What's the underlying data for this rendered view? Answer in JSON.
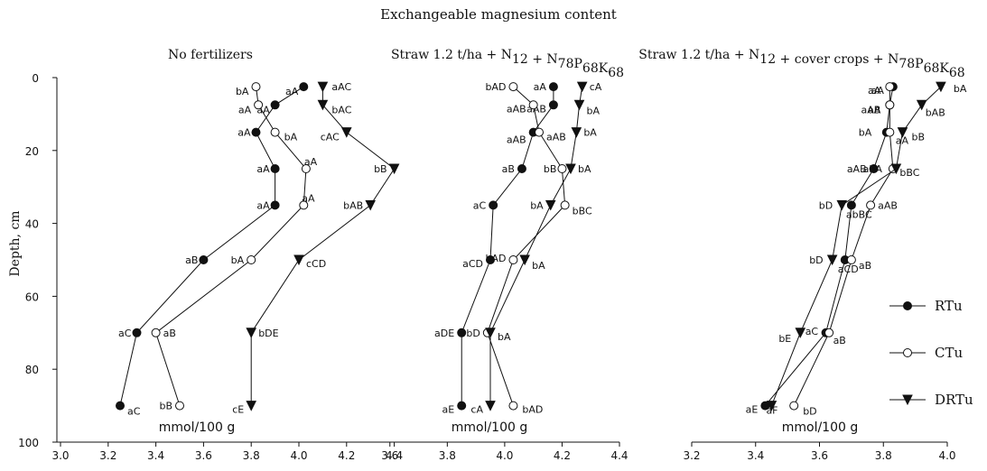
{
  "figure": {
    "title": "Exchangeable magnesium content",
    "ylabel": "Depth, cm",
    "yticks": [
      "0",
      "20",
      "40",
      "60",
      "80",
      "100"
    ],
    "legend": [
      {
        "name": "RTu",
        "marker": "circle-filled"
      },
      {
        "name": "CTu",
        "marker": "circle-open"
      },
      {
        "name": "DRTu",
        "marker": "triangle-down-filled"
      }
    ]
  },
  "chart_data": [
    {
      "type": "line",
      "title": "No fertilizers",
      "xlabel": "mmol/100 g",
      "ylabel": "Depth, cm",
      "xlim": [
        3.0,
        4.5
      ],
      "ylim": [
        0,
        100
      ],
      "xticks": [
        "3.0",
        "3.2",
        "3.4",
        "3.6",
        "3.8",
        "4.0",
        "4.2",
        "4.4"
      ],
      "xtick_values": [
        3.0,
        3.2,
        3.4,
        3.6,
        3.8,
        4.0,
        4.2,
        4.4
      ],
      "series": [
        {
          "name": "RTu",
          "marker": "circle-filled",
          "points": [
            [
              4.02,
              2.5
            ],
            [
              3.9,
              7.5
            ],
            [
              3.82,
              15
            ],
            [
              3.9,
              25
            ],
            [
              3.9,
              35
            ],
            [
              3.6,
              50
            ],
            [
              3.32,
              70
            ],
            [
              3.25,
              90
            ]
          ],
          "labels": [
            "aA",
            "aA",
            "aA",
            "aA",
            "aA",
            "aB",
            "aC",
            "aC"
          ]
        },
        {
          "name": "CTu",
          "marker": "circle-open",
          "points": [
            [
              3.82,
              2.5
            ],
            [
              3.83,
              7.5
            ],
            [
              3.9,
              15
            ],
            [
              4.03,
              25
            ],
            [
              4.02,
              35
            ],
            [
              3.8,
              50
            ],
            [
              3.4,
              70
            ],
            [
              3.5,
              90
            ]
          ],
          "labels": [
            "bA",
            "aA",
            "bA",
            "aA",
            "aA",
            "bA",
            "aB",
            "bB"
          ]
        },
        {
          "name": "DRTu",
          "marker": "triangle-down-filled",
          "points": [
            [
              4.1,
              2.5
            ],
            [
              4.1,
              7.5
            ],
            [
              4.2,
              15
            ],
            [
              4.4,
              25
            ],
            [
              4.3,
              35
            ],
            [
              4.0,
              50
            ],
            [
              3.8,
              70
            ],
            [
              3.8,
              90
            ]
          ],
          "labels": [
            "aAC",
            "bAC",
            "cAC",
            "bB",
            "bAB",
            "cCD",
            "bDE",
            "cE"
          ]
        }
      ]
    },
    {
      "type": "line",
      "title": "Straw 1.2 t/ha + N12 + N78P68K68",
      "xlabel": "mmol/100 g",
      "ylabel": "Depth, cm",
      "xlim": [
        3.5,
        4.4
      ],
      "ylim": [
        0,
        100
      ],
      "xticks": [
        "3.6",
        "3.8",
        "4.0",
        "4.2",
        "4.4"
      ],
      "xtick_values": [
        3.6,
        3.8,
        4.0,
        4.2,
        4.4
      ],
      "series": [
        {
          "name": "RTu",
          "marker": "circle-filled",
          "points": [
            [
              4.17,
              2.5
            ],
            [
              4.17,
              7.5
            ],
            [
              4.1,
              15
            ],
            [
              4.06,
              25
            ],
            [
              3.96,
              35
            ],
            [
              3.95,
              50
            ],
            [
              3.85,
              70
            ],
            [
              3.85,
              90
            ]
          ],
          "labels": [
            "aA",
            "aAB",
            "aAB",
            "aB",
            "aC",
            "aCD",
            "aDE",
            "aE"
          ]
        },
        {
          "name": "CTu",
          "marker": "circle-open",
          "points": [
            [
              4.03,
              2.5
            ],
            [
              4.1,
              7.5
            ],
            [
              4.12,
              15
            ],
            [
              4.2,
              25
            ],
            [
              4.21,
              35
            ],
            [
              4.03,
              50
            ],
            [
              3.94,
              70
            ],
            [
              4.03,
              90
            ]
          ],
          "labels": [
            "bAD",
            "aAB",
            "aAB",
            "bB",
            "bBC",
            "bAD",
            "bD",
            "bAD"
          ]
        },
        {
          "name": "DRTu",
          "marker": "triangle-down-filled",
          "points": [
            [
              4.27,
              2.5
            ],
            [
              4.26,
              7.5
            ],
            [
              4.25,
              15
            ],
            [
              4.23,
              25
            ],
            [
              4.16,
              35
            ],
            [
              4.07,
              50
            ],
            [
              3.95,
              70
            ],
            [
              3.95,
              90
            ]
          ],
          "labels": [
            "cA",
            "bA",
            "bA",
            "bA",
            "bA",
            "bA",
            "bA",
            "cA"
          ]
        }
      ]
    },
    {
      "type": "line",
      "title": "Straw 1.2 t/ha + N12 + cover crops + N78P68K68",
      "xlabel": "mmol/100 g",
      "ylabel": "Depth, cm",
      "xlim": [
        3.2,
        4.0
      ],
      "ylim": [
        0,
        100
      ],
      "xticks": [
        "3.2",
        "3.4",
        "3.6",
        "3.8",
        "4.0"
      ],
      "xtick_values": [
        3.2,
        3.4,
        3.6,
        3.8,
        4.0
      ],
      "series": [
        {
          "name": "RTu",
          "marker": "circle-filled",
          "points": [
            [
              3.83,
              2.5
            ],
            [
              3.82,
              7.5
            ],
            [
              3.81,
              15
            ],
            [
              3.77,
              25
            ],
            [
              3.7,
              35
            ],
            [
              3.68,
              50
            ],
            [
              3.62,
              70
            ],
            [
              3.43,
              90
            ]
          ],
          "labels": [
            "aA",
            "aA",
            "aA",
            "aAB",
            "abBC",
            "aCD",
            "aB",
            "aE"
          ]
        },
        {
          "name": "CTu",
          "marker": "circle-open",
          "points": [
            [
              3.82,
              2.5
            ],
            [
              3.82,
              7.5
            ],
            [
              3.82,
              15
            ],
            [
              3.83,
              25
            ],
            [
              3.76,
              35
            ],
            [
              3.7,
              50
            ],
            [
              3.63,
              70
            ],
            [
              3.52,
              90
            ]
          ],
          "labels": [
            "aA",
            "aAB",
            "bA",
            "abA",
            "aAB",
            "aB",
            "aC",
            "bD"
          ]
        },
        {
          "name": "DRTu",
          "marker": "triangle-down-filled",
          "points": [
            [
              3.98,
              2.5
            ],
            [
              3.92,
              7.5
            ],
            [
              3.86,
              15
            ],
            [
              3.84,
              25
            ],
            [
              3.67,
              35
            ],
            [
              3.64,
              50
            ],
            [
              3.54,
              70
            ],
            [
              3.45,
              90
            ]
          ],
          "labels": [
            "bA",
            "bAB",
            "bB",
            "bBC",
            "bD",
            "bD",
            "bE",
            "aF"
          ]
        }
      ]
    }
  ]
}
